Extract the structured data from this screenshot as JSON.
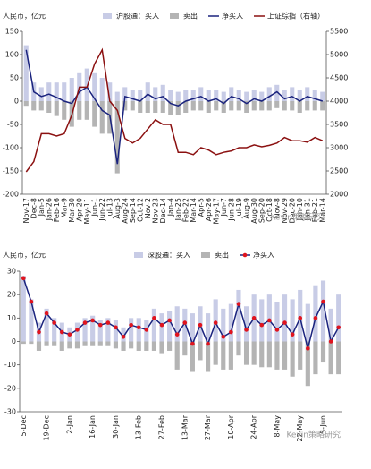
{
  "chart_data": [
    {
      "type": "combo",
      "y_title": "人民币，亿元",
      "watermark": "Kevin策略研究",
      "categories": [
        "Nov-17",
        "Dec-8",
        "Jan-5",
        "Jan-26",
        "Feb-16",
        "Mar-9",
        "Mar-30",
        "Apr-20",
        "May-11",
        "Jun-1",
        "Jun-22",
        "Jul-13",
        "Aug-3",
        "Aug-24",
        "Sep-14",
        "Oct-12",
        "Nov-2",
        "Nov-23",
        "Dec-14",
        "Jan-4",
        "Jan-25",
        "Feb-22",
        "Mar-14",
        "Apr-5",
        "Apr-26",
        "May-17",
        "Jun-7",
        "Jun-28",
        "Jul-19",
        "Aug-9",
        "Aug-30",
        "Sep-20",
        "Oct-18",
        "Nov-8",
        "Nov-29",
        "Dec-20",
        "Jan-10",
        "Jan-31",
        "Feb-21",
        "Mar-14"
      ],
      "ylim": [
        -200,
        150
      ],
      "yticks": [
        -200,
        -150,
        -100,
        -50,
        0,
        50,
        100,
        150
      ],
      "y2lim": [
        2000,
        5500
      ],
      "y2ticks": [
        2000,
        2500,
        3000,
        3500,
        4000,
        4500,
        5000,
        5500
      ],
      "series": [
        {
          "name": "沪股通：买入",
          "kind": "bar",
          "color": "#c8cce6",
          "values": [
            120,
            40,
            30,
            40,
            40,
            40,
            50,
            60,
            70,
            60,
            50,
            40,
            20,
            30,
            25,
            25,
            40,
            30,
            35,
            25,
            20,
            25,
            25,
            30,
            25,
            25,
            20,
            30,
            25,
            20,
            25,
            20,
            30,
            35,
            25,
            30,
            25,
            30,
            25,
            20
          ]
        },
        {
          "name": "卖出",
          "kind": "bar",
          "color": "#b4b4b4",
          "values": [
            -10,
            -20,
            -20,
            -25,
            -32,
            -40,
            -55,
            -40,
            -40,
            -55,
            -70,
            -70,
            -155,
            -20,
            -20,
            -25,
            -25,
            -25,
            -25,
            -30,
            -30,
            -25,
            -20,
            -20,
            -25,
            -20,
            -25,
            -20,
            -20,
            -25,
            -20,
            -20,
            -20,
            -15,
            -20,
            -20,
            -25,
            -20,
            -20,
            -20
          ]
        },
        {
          "name": "净买入",
          "kind": "line",
          "color": "#1a237e",
          "values": [
            110,
            20,
            10,
            15,
            8,
            0,
            -5,
            20,
            30,
            5,
            -20,
            -30,
            -135,
            10,
            5,
            0,
            15,
            5,
            10,
            -5,
            -10,
            0,
            5,
            10,
            0,
            5,
            -5,
            10,
            5,
            -5,
            5,
            0,
            10,
            20,
            5,
            10,
            0,
            10,
            5,
            0
          ]
        },
        {
          "name": "上证综指（右轴）",
          "kind": "line",
          "axis": "y2",
          "color": "#8b1010",
          "values": [
            2480,
            2700,
            3300,
            3300,
            3250,
            3300,
            3700,
            4300,
            4300,
            4800,
            5100,
            4000,
            3800,
            3200,
            3100,
            3200,
            3400,
            3600,
            3500,
            3500,
            2900,
            2900,
            2850,
            3000,
            2950,
            2850,
            2900,
            2930,
            3000,
            3000,
            3060,
            3020,
            3050,
            3100,
            3220,
            3150,
            3150,
            3120,
            3220,
            3150
          ]
        }
      ]
    },
    {
      "type": "combo",
      "y_title": "人民币，亿元",
      "watermark": "Kevin策略研究",
      "categories": [
        "5-Dec",
        null,
        null,
        "19-Dec",
        null,
        null,
        "2-Jan",
        null,
        null,
        "16-Jan",
        null,
        null,
        "30-Jan",
        null,
        null,
        "13-Feb",
        null,
        null,
        "27-Feb",
        null,
        null,
        "13-Mar",
        null,
        null,
        "27-Mar",
        null,
        null,
        "10-Apr",
        null,
        null,
        "24-Apr",
        null,
        null,
        "8-May",
        null,
        null,
        "22-May",
        null,
        null,
        "5-Jun",
        null,
        null
      ],
      "ylim": [
        -30,
        30
      ],
      "yticks": [
        -30,
        -20,
        -10,
        0,
        10,
        20,
        30
      ],
      "series": [
        {
          "name": "深股通：买入",
          "kind": "bar",
          "color": "#c8cce6",
          "values": [
            28,
            18,
            8,
            14,
            10,
            8,
            6,
            8,
            10,
            11,
            9,
            10,
            9,
            6,
            10,
            10,
            9,
            14,
            12,
            13,
            15,
            14,
            12,
            15,
            12,
            18,
            14,
            16,
            22,
            15,
            20,
            18,
            20,
            17,
            20,
            18,
            22,
            16,
            24,
            26,
            14,
            20
          ]
        },
        {
          "name": "卖出",
          "kind": "bar",
          "color": "#b4b4b4",
          "values": [
            -1,
            -1,
            -4,
            -2,
            -2,
            -4,
            -3,
            -3,
            -2,
            -2,
            -2,
            -2,
            -3,
            -4,
            -3,
            -4,
            -4,
            -4,
            -5,
            -4,
            -12,
            -6,
            -13,
            -8,
            -13,
            -10,
            -12,
            -12,
            -6,
            -10,
            -10,
            -11,
            -11,
            -12,
            -12,
            -15,
            -12,
            -19,
            -14,
            -9,
            -14,
            -14
          ]
        },
        {
          "name": "净买入",
          "kind": "line",
          "color": "#1a237e",
          "marker_color": "#e0141e",
          "values": [
            27,
            17,
            4,
            12,
            8,
            4,
            3,
            5,
            8,
            9,
            7,
            8,
            6,
            2,
            7,
            6,
            5,
            10,
            7,
            9,
            3,
            8,
            -1,
            7,
            -1,
            8,
            2,
            4,
            16,
            5,
            10,
            7,
            9,
            5,
            8,
            3,
            10,
            -3,
            10,
            17,
            0,
            6
          ]
        }
      ]
    }
  ]
}
